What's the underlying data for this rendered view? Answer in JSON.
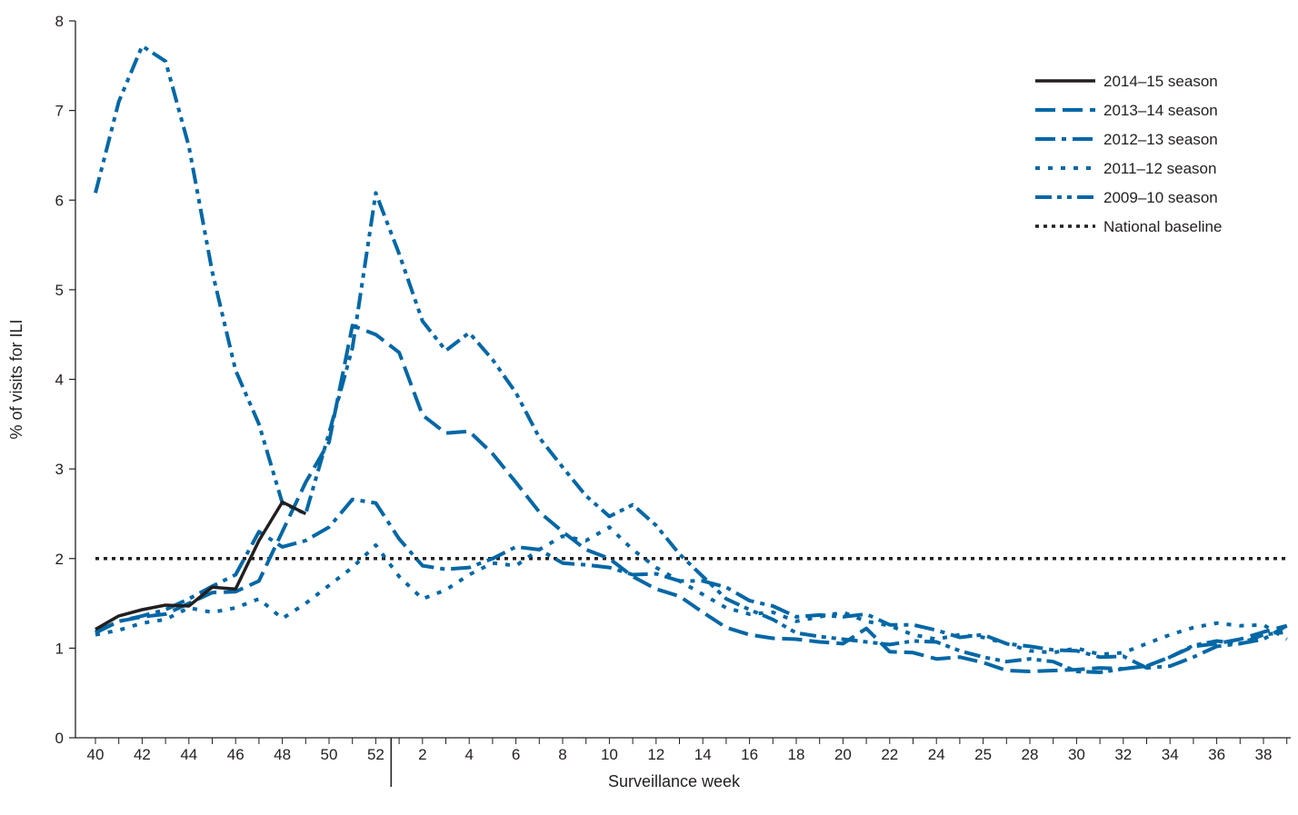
{
  "chart_data": {
    "type": "line",
    "title": "",
    "xlabel": "Surveillance week",
    "ylabel": "% of visits for ILI",
    "ylim": [
      0,
      8
    ],
    "yticks": [
      0,
      1,
      2,
      3,
      4,
      5,
      6,
      7,
      8
    ],
    "grid": false,
    "legend_position": "top-right",
    "x_tick_labels": [
      "40",
      "42",
      "44",
      "46",
      "48",
      "50",
      "52",
      "2",
      "4",
      "6",
      "8",
      "10",
      "12",
      "14",
      "16",
      "18",
      "20",
      "22",
      "24",
      "25",
      "28",
      "30",
      "32",
      "34",
      "36",
      "38"
    ],
    "x_tick_positions": [
      0,
      2,
      4,
      6,
      8,
      10,
      12,
      14,
      16,
      18,
      20,
      22,
      24,
      26,
      28,
      30,
      32,
      34,
      36,
      38,
      40,
      42,
      44,
      46,
      48,
      50
    ],
    "year_boundary_after_index": 12.5,
    "series": [
      {
        "name": "2014–15 season",
        "style": "solid",
        "color": "#231f20",
        "x": [
          0,
          1,
          2,
          3,
          4,
          5,
          6,
          7,
          8,
          9
        ],
        "values": [
          1.21,
          1.36,
          1.43,
          1.48,
          1.47,
          1.68,
          1.66,
          2.2,
          2.63,
          2.5
        ]
      },
      {
        "name": "2013–14 season",
        "style": "dashed",
        "color": "#0067a5",
        "x": [
          0,
          1,
          2,
          3,
          4,
          5,
          6,
          7,
          8,
          9,
          10,
          11,
          12,
          13,
          14,
          15,
          16,
          17,
          18,
          19,
          20,
          21,
          22,
          23,
          24,
          25,
          26,
          27,
          28,
          29,
          30,
          31,
          32,
          33,
          34,
          35,
          36,
          37,
          38,
          39,
          40,
          41,
          42,
          43,
          44,
          45,
          46,
          47,
          48,
          49,
          50,
          51
        ],
        "values": [
          1.17,
          1.3,
          1.35,
          1.38,
          1.5,
          1.62,
          1.63,
          1.75,
          2.3,
          2.85,
          3.3,
          4.6,
          4.5,
          4.3,
          3.6,
          3.4,
          3.42,
          3.17,
          2.85,
          2.52,
          2.3,
          2.1,
          2.0,
          1.8,
          1.66,
          1.58,
          1.4,
          1.23,
          1.15,
          1.11,
          1.1,
          1.07,
          1.05,
          1.22,
          0.96,
          0.95,
          0.88,
          0.9,
          0.84,
          0.75,
          0.74,
          0.75,
          0.76,
          0.78,
          0.77,
          0.8,
          0.9,
          1.02,
          1.05,
          1.1,
          1.18,
          1.25
        ]
      },
      {
        "name": "2012–13 season",
        "style": "dashdot",
        "color": "#0067a5",
        "x": [
          0,
          1,
          2,
          3,
          4,
          5,
          6,
          7,
          8,
          9,
          10,
          11,
          12,
          13,
          14,
          15,
          16,
          17,
          18,
          19,
          20,
          21,
          22,
          23,
          24,
          25,
          26,
          27,
          28,
          29,
          30,
          31,
          32,
          33,
          34,
          35,
          36,
          37,
          38,
          39,
          40,
          41,
          42,
          43,
          44,
          45,
          46,
          47,
          48,
          49,
          50,
          51
        ],
        "values": [
          1.18,
          1.3,
          1.36,
          1.43,
          1.55,
          1.69,
          1.82,
          2.3,
          2.13,
          2.2,
          2.35,
          2.66,
          2.62,
          2.22,
          1.92,
          1.88,
          1.9,
          2.0,
          2.13,
          2.1,
          1.95,
          1.93,
          1.9,
          1.82,
          1.83,
          1.75,
          1.75,
          1.68,
          1.53,
          1.47,
          1.35,
          1.37,
          1.35,
          1.38,
          1.26,
          1.26,
          1.2,
          1.12,
          1.15,
          1.05,
          1.02,
          0.98,
          0.97,
          0.9,
          0.91,
          0.78,
          0.8,
          0.9,
          1.02,
          1.05,
          1.1,
          1.25
        ]
      },
      {
        "name": "2011–12 season",
        "style": "dotted",
        "color": "#0067a5",
        "x": [
          0,
          1,
          2,
          3,
          4,
          5,
          6,
          7,
          8,
          9,
          10,
          11,
          12,
          13,
          14,
          15,
          16,
          17,
          18,
          19,
          20,
          21,
          22,
          23,
          24,
          25,
          26,
          27,
          28,
          29,
          30,
          31,
          32,
          33,
          34,
          35,
          36,
          37,
          38,
          39,
          40,
          41,
          42,
          43,
          44,
          45,
          46,
          47,
          48,
          49,
          50,
          51
        ],
        "values": [
          1.15,
          1.2,
          1.28,
          1.32,
          1.45,
          1.4,
          1.45,
          1.55,
          1.33,
          1.5,
          1.7,
          1.9,
          2.15,
          1.8,
          1.55,
          1.65,
          1.82,
          1.95,
          1.92,
          2.1,
          2.25,
          2.2,
          2.35,
          2.1,
          1.9,
          1.75,
          1.6,
          1.45,
          1.38,
          1.4,
          1.3,
          1.35,
          1.4,
          1.3,
          1.25,
          1.15,
          1.1,
          1.15,
          1.12,
          1.05,
          0.97,
          0.95,
          1.0,
          0.93,
          0.95,
          1.05,
          1.15,
          1.23,
          1.28,
          1.25,
          1.26,
          1.1
        ]
      },
      {
        "name": "2009–10 season",
        "style": "dashdotdot",
        "color": "#0067a5",
        "x": [
          0,
          1,
          2,
          3,
          4,
          5,
          6,
          7,
          8,
          9,
          10,
          11,
          12,
          13,
          14,
          15,
          16,
          17,
          18,
          19,
          20,
          21,
          22,
          23,
          24,
          25,
          26,
          27,
          28,
          29,
          30,
          31,
          32,
          33,
          34,
          35,
          36,
          37,
          38,
          39,
          40,
          41,
          42,
          43,
          44,
          45,
          46,
          47,
          48,
          49,
          50,
          51
        ],
        "values": [
          6.08,
          7.1,
          7.72,
          7.55,
          6.6,
          5.2,
          4.1,
          3.5,
          2.62,
          2.5,
          3.4,
          4.35,
          6.08,
          5.4,
          4.65,
          4.32,
          4.52,
          4.22,
          3.85,
          3.35,
          3.02,
          2.7,
          2.47,
          2.6,
          2.37,
          2.05,
          1.8,
          1.55,
          1.43,
          1.32,
          1.17,
          1.13,
          1.1,
          1.07,
          1.04,
          1.08,
          1.07,
          0.97,
          0.9,
          0.85,
          0.88,
          0.85,
          0.74,
          0.73,
          0.77,
          0.8,
          0.9,
          1.03,
          1.08,
          1.05,
          1.15,
          1.18
        ]
      },
      {
        "name": "National baseline",
        "style": "baseline",
        "color": "#231f20",
        "x": [
          0,
          51
        ],
        "values": [
          2.0,
          2.0
        ]
      }
    ]
  }
}
